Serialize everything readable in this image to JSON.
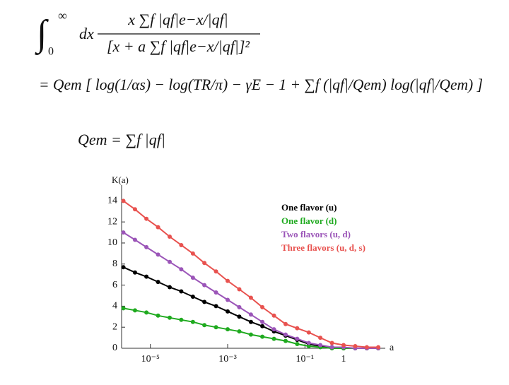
{
  "equations": {
    "integral_sign": "∫",
    "upper_limit": "∞",
    "lower_limit": "0",
    "dx": "dx",
    "numerator": "x ∑f |qf|e−x/|qf|",
    "denominator": "[x + a ∑f |qf|e−x/|qf|]²",
    "result": "= Qem [ log(1/αs) − log(TR/π) − γE − 1 + ∑f (|qf|/Qem) log(|qf|/Qem) ]",
    "definition": "Qem = ∑f |qf|"
  },
  "chart_data": {
    "type": "line",
    "y_label": "K(a)",
    "x_label": "a",
    "log_x": true,
    "x": [
      2e-06,
      4e-06,
      7.9e-06,
      1.58e-05,
      3.16e-05,
      6.3e-05,
      0.000126,
      0.00025,
      0.0005,
      0.001,
      0.002,
      0.004,
      0.0079,
      0.0158,
      0.0316,
      0.063,
      0.126,
      0.25,
      0.5,
      1,
      2,
      4,
      7.9
    ],
    "series": [
      {
        "name": "One flavor (u)",
        "color": "#000000",
        "values": [
          7.7,
          7.2,
          6.8,
          6.3,
          5.8,
          5.4,
          4.9,
          4.4,
          4.0,
          3.5,
          3.0,
          2.5,
          2.1,
          1.6,
          1.2,
          0.8,
          0.4,
          0.2,
          0.1,
          0,
          0,
          0,
          0
        ]
      },
      {
        "name": "One flavor (d)",
        "color": "#1faa1f",
        "values": [
          3.8,
          3.6,
          3.4,
          3.1,
          2.9,
          2.7,
          2.5,
          2.2,
          2.0,
          1.8,
          1.6,
          1.3,
          1.1,
          0.9,
          0.7,
          0.4,
          0.2,
          0.1,
          0,
          0,
          0,
          0,
          0
        ]
      },
      {
        "name": "Two flavors (u, d)",
        "color": "#9b55b8",
        "values": [
          11.0,
          10.3,
          9.6,
          8.9,
          8.2,
          7.5,
          6.7,
          6.0,
          5.3,
          4.6,
          3.9,
          3.2,
          2.5,
          1.8,
          1.3,
          0.9,
          0.5,
          0.3,
          0.1,
          0.1,
          0,
          0,
          0
        ]
      },
      {
        "name": "Three flavors (u, d, s)",
        "color": "#e8524f",
        "values": [
          14.0,
          13.2,
          12.3,
          11.5,
          10.6,
          9.8,
          9.0,
          8.1,
          7.3,
          6.4,
          5.6,
          4.8,
          3.9,
          3.1,
          2.3,
          1.9,
          1.5,
          1.0,
          0.5,
          0.3,
          0.2,
          0.1,
          0.1
        ]
      }
    ],
    "xlim": [
      1.8e-06,
      12
    ],
    "xticks": [
      {
        "value": 1e-05,
        "label": "10⁻⁵"
      },
      {
        "value": 0.001,
        "label": "10⁻³"
      },
      {
        "value": 0.1,
        "label": "10⁻¹"
      },
      1
    ],
    "ylim": [
      0,
      15.5
    ],
    "yticks": [
      0,
      2,
      4,
      6,
      8,
      10,
      12,
      14
    ],
    "legend": "upper right"
  }
}
